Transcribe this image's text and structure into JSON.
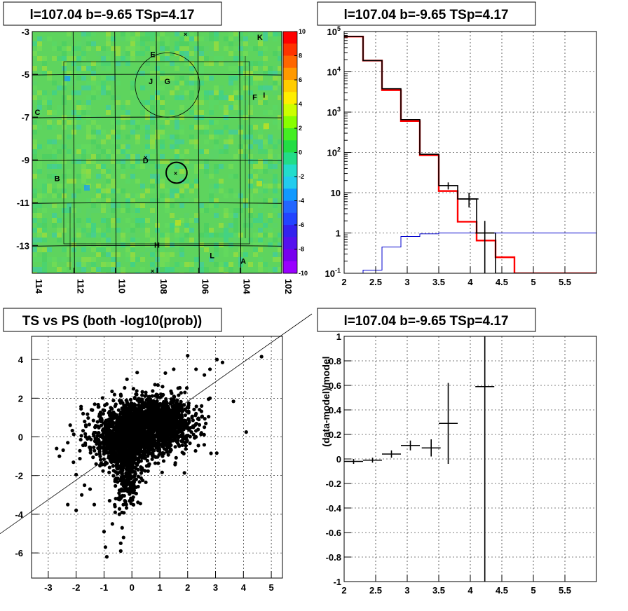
{
  "chart_data": [
    {
      "type": "heatmap",
      "title": "l=107.04 b=-9.65 TSp=4.17",
      "xlim": [
        114,
        102
      ],
      "ylim": [
        -14.3,
        -3
      ],
      "xticks": [
        "114",
        "112",
        "110",
        "108",
        "106",
        "104",
        "102"
      ],
      "yticks": [
        "-3",
        "-5",
        "-7",
        "-9",
        "-11",
        "-13"
      ],
      "colorbar": {
        "range": [
          -10,
          10
        ],
        "ticks": [
          "10",
          "8",
          "6",
          "4",
          "2",
          "0",
          "-2",
          "-4",
          "-6",
          "-8",
          "-10"
        ]
      },
      "circles": [
        {
          "l": 107.5,
          "b": -5.5,
          "r": 1.55
        },
        {
          "l": 107.06,
          "b": -9.6,
          "r": 0.5
        }
      ],
      "annotations": [
        {
          "text": "K",
          "l": 103.05,
          "b": -3.4
        },
        {
          "text": "E",
          "l": 108.2,
          "b": -4.2
        },
        {
          "text": "J",
          "l": 108.3,
          "b": -5.45
        },
        {
          "text": "G",
          "l": 107.5,
          "b": -5.45
        },
        {
          "text": "F",
          "l": 103.3,
          "b": -6.2
        },
        {
          "text": "I",
          "l": 102.85,
          "b": -6.1
        },
        {
          "text": "C",
          "l": 113.75,
          "b": -6.9
        },
        {
          "text": "D",
          "l": 108.55,
          "b": -9.15
        },
        {
          "text": "B",
          "l": 112.8,
          "b": -10.0
        },
        {
          "text": "H",
          "l": 108.0,
          "b": -13.1
        },
        {
          "text": "L",
          "l": 105.35,
          "b": -13.6
        },
        {
          "text": "A",
          "l": 103.85,
          "b": -13.85
        }
      ]
    },
    {
      "type": "line",
      "title": "l=107.04 b=-9.65 TSp=4.17",
      "xlim": [
        2,
        6
      ],
      "ylim": [
        0.1,
        100000
      ],
      "log_y": true,
      "xticks": [
        "2",
        "2.5",
        "3",
        "3.5",
        "4",
        "4.5",
        "5",
        "5.5"
      ],
      "yticks": [
        "10^5",
        "10^4",
        "10^3",
        "10^2",
        "10",
        "1",
        "10^-1"
      ],
      "grid": true,
      "bin_edges": [
        2.0,
        2.3,
        2.6,
        2.9,
        3.2,
        3.5,
        3.8,
        4.1,
        4.4,
        4.7,
        5.0,
        5.3,
        5.6,
        6.0
      ],
      "series": [
        {
          "name": "",
          "color": "#ff0000",
          "values": [
            75000,
            19000,
            3500,
            600,
            85,
            11,
            1.9,
            0.65,
            0.25,
            0.1,
            0.1,
            0.1,
            0.1
          ]
        },
        {
          "name": "",
          "color": "#000000",
          "values": [
            75000,
            19000,
            3800,
            650,
            90,
            15,
            7,
            1,
            0.1,
            0.1,
            0.1,
            0.1,
            0.1
          ]
        },
        {
          "name": "",
          "color": "#0000cc",
          "values": [
            0.1,
            0.12,
            0.45,
            0.82,
            0.95,
            1,
            1,
            1,
            1,
            1,
            1,
            1,
            1
          ]
        }
      ],
      "points": [
        {
          "x": 3.65,
          "y": 15,
          "xerr": 0.15,
          "ylo": 12,
          "yhi": 18
        },
        {
          "x": 3.98,
          "y": 7,
          "xerr": 0.15,
          "ylo": 4.3,
          "yhi": 10
        },
        {
          "x": 4.23,
          "y": 1,
          "xerr": 0.15,
          "ylo": 0.1,
          "yhi": 2.0
        }
      ]
    },
    {
      "type": "scatter",
      "title": "TS vs PS (both -log10(prob))",
      "xlim": [
        -3.6,
        5.4
      ],
      "ylim": [
        -7.3,
        5.2
      ],
      "xticks": [
        "-3",
        "-2",
        "-1",
        "0",
        "1",
        "2",
        "3",
        "4",
        "5"
      ],
      "yticks": [
        "4",
        "2",
        "0",
        "-2",
        "-4",
        "-6"
      ],
      "grid": true,
      "diagonal": {
        "x1": -3.6,
        "y1": -4.5,
        "x2": 5.4,
        "y2": 5.2
      },
      "points": [
        [
          4.65,
          4.15
        ],
        [
          3.25,
          3.85
        ],
        [
          3.05,
          4.0
        ],
        [
          2.8,
          3.5
        ],
        [
          2.6,
          3.2
        ],
        [
          4.1,
          0.25
        ],
        [
          2.75,
          1.95
        ],
        [
          2.8,
          2.0
        ],
        [
          2.3,
          3.5
        ],
        [
          2.0,
          4.2
        ],
        [
          1.5,
          3.5
        ],
        [
          1.2,
          3.3
        ],
        [
          -2.0,
          -1.95
        ],
        [
          -2.3,
          -3.5
        ],
        [
          -2.0,
          -3.8
        ],
        [
          -1.8,
          -3.0
        ],
        [
          -1.5,
          -2.7
        ],
        [
          -1.0,
          -4.9
        ],
        [
          -0.7,
          -4.5
        ],
        [
          -0.4,
          -5.5
        ],
        [
          -0.35,
          -4.7
        ],
        [
          -0.95,
          -5.7
        ],
        [
          -0.9,
          -6.2
        ],
        [
          -0.4,
          -5.9
        ],
        [
          -0.3,
          -5.2
        ],
        [
          -0.45,
          -4.0
        ],
        [
          -0.6,
          -3.9
        ],
        [
          -1.35,
          -3.5
        ],
        [
          -1.7,
          -2.5
        ],
        [
          -2.3,
          -0.3
        ],
        [
          -2.6,
          -1.0
        ],
        [
          -2.7,
          -0.6
        ],
        [
          -1.75,
          1.2
        ],
        [
          -1.45,
          1.4
        ],
        [
          -0.9,
          1.7
        ],
        [
          -0.3,
          1.4
        ],
        [
          -1.15,
          -0.6
        ],
        [
          -0.2,
          -3.5
        ],
        [
          0.0,
          -2.8
        ],
        [
          0.3,
          -1.0
        ],
        [
          0.6,
          -1.5
        ],
        [
          1.1,
          -1.0
        ],
        [
          0.9,
          1.6
        ],
        [
          1.6,
          1.4
        ],
        [
          2.3,
          1.2
        ],
        [
          2.4,
          0.9
        ],
        [
          2.5,
          1.6
        ],
        [
          2.6,
          0.5
        ],
        [
          2.3,
          0.0
        ],
        [
          1.9,
          2.3
        ],
        [
          1.1,
          2.6
        ],
        [
          1.4,
          1.8
        ],
        [
          0.5,
          2.3
        ],
        [
          0.2,
          1.9
        ],
        [
          -0.4,
          0.8
        ],
        [
          -0.2,
          -1.3
        ],
        [
          -0.6,
          -2.2
        ],
        [
          -0.1,
          -2.2
        ],
        [
          -0.8,
          -3.3
        ]
      ],
      "clouds": [
        {
          "cx": 0.9,
          "cy": 0.9,
          "sx": 0.65,
          "sy": 0.6,
          "n": 900
        },
        {
          "cx": -0.25,
          "cy": -0.2,
          "sx": 0.55,
          "sy": 0.7,
          "n": 700
        },
        {
          "cx": -0.2,
          "cy": -1.6,
          "sx": 0.25,
          "sy": 0.9,
          "n": 300
        },
        {
          "cx": 0.35,
          "cy": 0.3,
          "sx": 0.9,
          "sy": 0.75,
          "n": 900
        }
      ]
    },
    {
      "type": "scatter",
      "title": "l=107.04 b=-9.65 TSp=4.17",
      "ylabel": "(data-model)/model",
      "xlim": [
        2,
        6
      ],
      "ylim": [
        -1,
        1
      ],
      "xticks": [
        "2",
        "2.5",
        "3",
        "3.5",
        "4",
        "4.5",
        "5",
        "5.5"
      ],
      "yticks": [
        "1",
        "0.8",
        "0.6",
        "0.4",
        "0.2",
        "0",
        "-0.2",
        "-0.4",
        "-0.6",
        "-0.8",
        "-1"
      ],
      "grid": true,
      "points": [
        {
          "x": 2.15,
          "y": -0.02,
          "xerr": 0.15,
          "yerr": 0.02
        },
        {
          "x": 2.45,
          "y": -0.01,
          "xerr": 0.15,
          "yerr": 0.02
        },
        {
          "x": 2.75,
          "y": 0.04,
          "xerr": 0.15,
          "yerr": 0.03
        },
        {
          "x": 3.05,
          "y": 0.11,
          "xerr": 0.15,
          "yerr": 0.04
        },
        {
          "x": 3.38,
          "y": 0.09,
          "xerr": 0.15,
          "yerr": 0.07
        },
        {
          "x": 3.65,
          "y": 0.29,
          "xerr": 0.15,
          "yerr": 0.33
        },
        {
          "x": 4.23,
          "y": 0.59,
          "xerr": 0.15,
          "yerr": 1.6
        }
      ]
    }
  ]
}
